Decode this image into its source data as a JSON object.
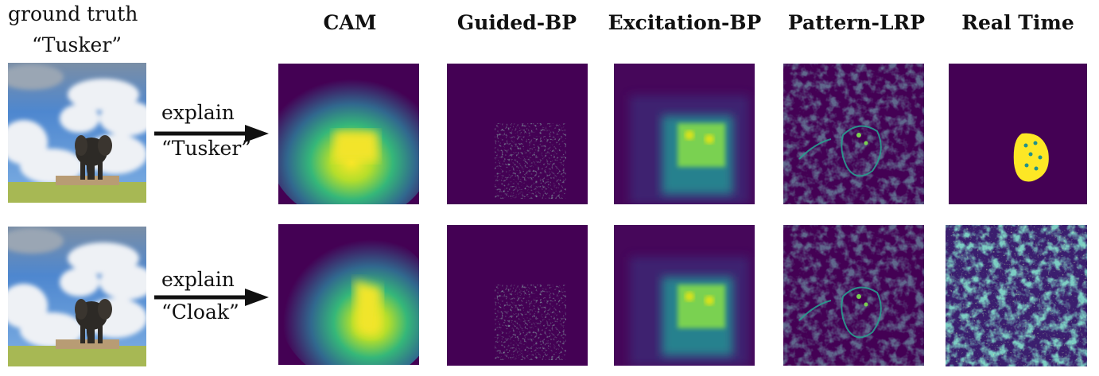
{
  "ground_truth": {
    "line1": "ground truth",
    "line2": "“Tusker”"
  },
  "columns": [
    {
      "id": "cam",
      "label": "CAM"
    },
    {
      "id": "guided-bp",
      "label": "Guided-BP"
    },
    {
      "id": "excitation-bp",
      "label": "Excitation-BP"
    },
    {
      "id": "pattern-lrp",
      "label": "Pattern-LRP"
    },
    {
      "id": "real-time",
      "label": "Real Time"
    }
  ],
  "rows": [
    {
      "verb": "explain",
      "target_class": "“Tusker”"
    },
    {
      "verb": "explain",
      "target_class": "“Cloak”"
    }
  ],
  "colors": {
    "viridis_low": "#440154",
    "viridis_dark": "#2b0a5e",
    "viridis_mid": "#21918c",
    "viridis_green": "#5ec962",
    "viridis_high": "#fde725",
    "sky": "#5b92d6",
    "cloud": "#f2f4f7",
    "grass": "#9bb24a"
  }
}
